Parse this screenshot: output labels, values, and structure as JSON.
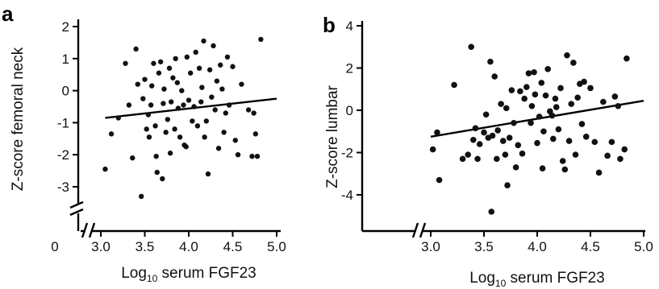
{
  "chart_data": [
    {
      "panel": "a",
      "type": "scatter",
      "xlabel": "Log10 serum FGF23",
      "xlabel_main": "Log",
      "xlabel_sub": "10",
      "xlabel_rest": " serum FGF23",
      "ylabel": "Z-score femoral neck",
      "xlim": [
        3.0,
        5.0
      ],
      "ylim": [
        -3.4,
        2
      ],
      "x_axis_break": true,
      "y_axis_break": true,
      "x_ticks": [
        "3.0",
        "3.5",
        "4.0",
        "4.5",
        "5.0"
      ],
      "x_origin_label": "0",
      "y_ticks": [
        "2",
        "1",
        "0",
        "-1",
        "-2",
        "-3"
      ],
      "y_tick_values": [
        2,
        1,
        0,
        -1,
        -2,
        -3
      ],
      "grid": false,
      "legend": "none",
      "fit_line": [
        [
          3.05,
          -0.85
        ],
        [
          5.0,
          -0.25
        ]
      ],
      "points": [
        [
          3.05,
          -2.45
        ],
        [
          3.12,
          -1.35
        ],
        [
          3.2,
          -0.85
        ],
        [
          3.28,
          0.85
        ],
        [
          3.32,
          -0.45
        ],
        [
          3.36,
          -2.1
        ],
        [
          3.4,
          1.3
        ],
        [
          3.42,
          0.2
        ],
        [
          3.46,
          -3.3
        ],
        [
          3.48,
          -0.25
        ],
        [
          3.5,
          0.35
        ],
        [
          3.52,
          -1.2
        ],
        [
          3.54,
          -0.75
        ],
        [
          3.55,
          -1.45
        ],
        [
          3.57,
          -0.45
        ],
        [
          3.58,
          0.15
        ],
        [
          3.6,
          0.85
        ],
        [
          3.62,
          -1.1
        ],
        [
          3.63,
          -2.05
        ],
        [
          3.64,
          -2.55
        ],
        [
          3.66,
          0.55
        ],
        [
          3.68,
          0.9
        ],
        [
          3.7,
          -2.75
        ],
        [
          3.71,
          -0.4
        ],
        [
          3.72,
          0.05
        ],
        [
          3.74,
          -1.3
        ],
        [
          3.76,
          -0.9
        ],
        [
          3.78,
          0.7
        ],
        [
          3.79,
          -1.95
        ],
        [
          3.8,
          -0.35
        ],
        [
          3.82,
          0.4
        ],
        [
          3.84,
          -1.2
        ],
        [
          3.85,
          1.0
        ],
        [
          3.87,
          0.25
        ],
        [
          3.88,
          -0.55
        ],
        [
          3.9,
          -1.45
        ],
        [
          3.92,
          0.0
        ],
        [
          3.94,
          -0.45
        ],
        [
          3.95,
          -1.7
        ],
        [
          3.97,
          -1.75
        ],
        [
          3.98,
          1.05
        ],
        [
          4.0,
          -0.3
        ],
        [
          4.02,
          0.55
        ],
        [
          4.04,
          -0.95
        ],
        [
          4.06,
          -0.5
        ],
        [
          4.08,
          1.2
        ],
        [
          4.1,
          -1.1
        ],
        [
          4.12,
          0.7
        ],
        [
          4.14,
          -0.35
        ],
        [
          4.15,
          0.1
        ],
        [
          4.17,
          1.55
        ],
        [
          4.18,
          -1.45
        ],
        [
          4.2,
          -0.95
        ],
        [
          4.22,
          -2.6
        ],
        [
          4.24,
          0.65
        ],
        [
          4.26,
          -0.2
        ],
        [
          4.28,
          1.4
        ],
        [
          4.3,
          -0.6
        ],
        [
          4.32,
          0.3
        ],
        [
          4.34,
          -1.8
        ],
        [
          4.36,
          0.8
        ],
        [
          4.38,
          0.05
        ],
        [
          4.4,
          -1.3
        ],
        [
          4.42,
          -0.7
        ],
        [
          4.44,
          1.05
        ],
        [
          4.46,
          -0.45
        ],
        [
          4.5,
          0.75
        ],
        [
          4.53,
          -1.55
        ],
        [
          4.56,
          -2.0
        ],
        [
          4.6,
          0.2
        ],
        [
          4.68,
          -0.6
        ],
        [
          4.72,
          -2.05
        ],
        [
          4.74,
          -0.7
        ],
        [
          4.76,
          -1.35
        ],
        [
          4.78,
          -2.05
        ],
        [
          4.82,
          1.6
        ]
      ]
    },
    {
      "panel": "b",
      "type": "scatter",
      "xlabel": "Log10 serum FGF23",
      "xlabel_main": "Log",
      "xlabel_sub": "10",
      "xlabel_rest": " serum FGF23",
      "ylabel": "Z-score lumbar",
      "xlim": [
        3.0,
        5.0
      ],
      "ylim": [
        -5.0,
        4
      ],
      "x_axis_break": true,
      "y_axis_break": false,
      "x_ticks": [
        "3.0",
        "3.5",
        "4.0",
        "4.5",
        "5.0"
      ],
      "y_ticks": [
        "4",
        "2",
        "0",
        "-2",
        "-4"
      ],
      "y_tick_values": [
        4,
        2,
        0,
        -2,
        -4
      ],
      "grid": false,
      "legend": "none",
      "fit_line": [
        [
          3.0,
          -1.25
        ],
        [
          5.0,
          0.45
        ]
      ],
      "points": [
        [
          3.02,
          -1.85
        ],
        [
          3.06,
          -1.05
        ],
        [
          3.08,
          -3.3
        ],
        [
          3.22,
          1.2
        ],
        [
          3.3,
          -2.3
        ],
        [
          3.35,
          -2.1
        ],
        [
          3.38,
          3.0
        ],
        [
          3.4,
          -1.4
        ],
        [
          3.42,
          -0.85
        ],
        [
          3.44,
          -2.3
        ],
        [
          3.46,
          -1.6
        ],
        [
          3.5,
          -1.05
        ],
        [
          3.52,
          -0.2
        ],
        [
          3.54,
          -1.3
        ],
        [
          3.56,
          2.3
        ],
        [
          3.57,
          -4.8
        ],
        [
          3.58,
          -1.2
        ],
        [
          3.6,
          1.6
        ],
        [
          3.62,
          -2.3
        ],
        [
          3.63,
          -0.95
        ],
        [
          3.66,
          0.3
        ],
        [
          3.68,
          -1.45
        ],
        [
          3.7,
          -2.1
        ],
        [
          3.71,
          0.1
        ],
        [
          3.72,
          -3.55
        ],
        [
          3.74,
          -1.3
        ],
        [
          3.76,
          0.95
        ],
        [
          3.78,
          -0.6
        ],
        [
          3.8,
          -2.7
        ],
        [
          3.82,
          -1.65
        ],
        [
          3.84,
          0.9
        ],
        [
          3.86,
          -2.05
        ],
        [
          3.88,
          0.55
        ],
        [
          3.9,
          1.1
        ],
        [
          3.92,
          1.75
        ],
        [
          3.94,
          -0.6
        ],
        [
          3.95,
          0.2
        ],
        [
          3.97,
          1.8
        ],
        [
          3.98,
          0.75
        ],
        [
          4.0,
          -1.55
        ],
        [
          4.02,
          -0.3
        ],
        [
          4.04,
          1.3
        ],
        [
          4.05,
          -2.75
        ],
        [
          4.06,
          -1.0
        ],
        [
          4.08,
          0.7
        ],
        [
          4.1,
          1.95
        ],
        [
          4.12,
          -0.05
        ],
        [
          4.14,
          -0.25
        ],
        [
          4.15,
          -1.35
        ],
        [
          4.17,
          0.55
        ],
        [
          4.18,
          0.15
        ],
        [
          4.2,
          -0.9
        ],
        [
          4.22,
          1.05
        ],
        [
          4.24,
          -2.4
        ],
        [
          4.26,
          -2.8
        ],
        [
          4.28,
          2.6
        ],
        [
          4.3,
          -1.45
        ],
        [
          4.32,
          0.3
        ],
        [
          4.34,
          2.25
        ],
        [
          4.36,
          -2.1
        ],
        [
          4.38,
          0.6
        ],
        [
          4.4,
          1.25
        ],
        [
          4.42,
          -0.65
        ],
        [
          4.44,
          1.35
        ],
        [
          4.46,
          -1.25
        ],
        [
          4.5,
          1.05
        ],
        [
          4.54,
          -1.5
        ],
        [
          4.58,
          -2.95
        ],
        [
          4.62,
          0.4
        ],
        [
          4.66,
          -2.15
        ],
        [
          4.7,
          -1.5
        ],
        [
          4.73,
          0.65
        ],
        [
          4.76,
          0.2
        ],
        [
          4.78,
          -2.3
        ],
        [
          4.82,
          -1.85
        ],
        [
          4.84,
          2.45
        ]
      ]
    }
  ]
}
